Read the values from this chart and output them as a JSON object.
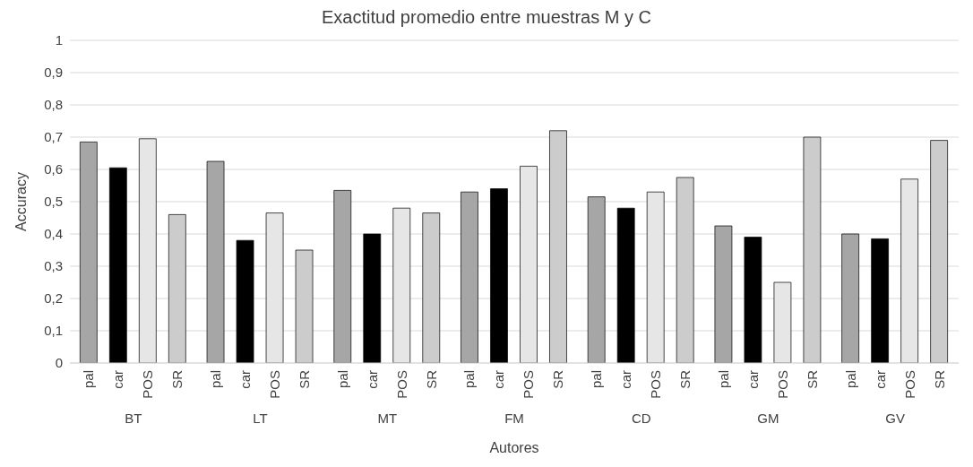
{
  "chart_data": {
    "type": "bar",
    "title": "Exactitud  promedio entre muestras M y C",
    "xlabel": "Autores",
    "ylabel": "Accuracy",
    "categories": [
      "BT",
      "LT",
      "MT",
      "FM",
      "CD",
      "GM",
      "GV"
    ],
    "series": [
      {
        "name": "pal",
        "color": "#a6a6a6",
        "values": [
          0.685,
          0.625,
          0.535,
          0.53,
          0.515,
          0.425,
          0.4
        ]
      },
      {
        "name": "car",
        "color": "#000000",
        "values": [
          0.605,
          0.38,
          0.4,
          0.54,
          0.48,
          0.39,
          0.385
        ]
      },
      {
        "name": "POS",
        "color": "#e6e6e6",
        "values": [
          0.695,
          0.465,
          0.48,
          0.61,
          0.53,
          0.25,
          0.57
        ]
      },
      {
        "name": "SR",
        "color": "#cccccc",
        "values": [
          0.46,
          0.35,
          0.465,
          0.72,
          0.575,
          0.7,
          0.69
        ]
      }
    ],
    "ylim": [
      0,
      1
    ],
    "yticks": [
      0,
      {
        "value": 0.1,
        "label": "0,1"
      },
      {
        "value": 0.2,
        "label": "0,2"
      },
      {
        "value": 0.3,
        "label": "0,3"
      },
      {
        "value": 0.4,
        "label": "0,4"
      },
      {
        "value": 0.5,
        "label": "0,5"
      },
      {
        "value": 0.6,
        "label": "0,6"
      },
      {
        "value": 0.7,
        "label": "0,7"
      },
      {
        "value": 0.8,
        "label": "0,8"
      },
      {
        "value": 0.9,
        "label": "0,9"
      },
      1
    ],
    "grid": "y"
  }
}
